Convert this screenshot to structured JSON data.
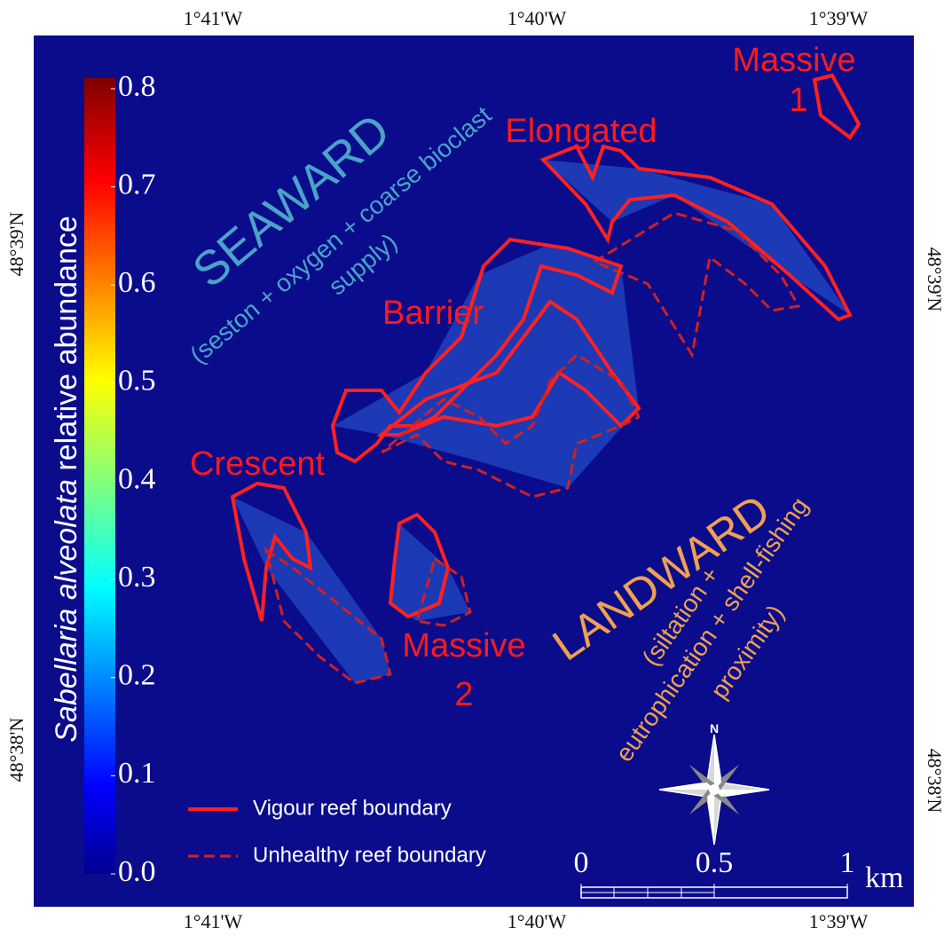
{
  "coordinates": {
    "top": [
      "1°41'W",
      "1°40'W",
      "1°39'W"
    ],
    "bottom": [
      "1°41'W",
      "1°40'W",
      "1°39'W"
    ],
    "left": [
      "48°39'N",
      "48°38'N"
    ],
    "right": [
      "48°39'N",
      "48°38'N"
    ]
  },
  "colorbar": {
    "title_italic": "Sabellaria alveolata",
    "title_rest": "relative abundance",
    "lim": [
      {
        "value": 0,
        "label": "0.0"
      },
      0.8
    ],
    "ticks": [
      {
        "value": 0,
        "label": "0.0"
      },
      0.1,
      0.2,
      0.3,
      0.4,
      0.5,
      0.6,
      0.7,
      0.8
    ]
  },
  "zones": {
    "seaward": {
      "title": "SEAWARD",
      "lines": [
        "(seston + oxygen + coarse bioclast",
        "supply)"
      ]
    },
    "landward": {
      "title": "LANDWARD",
      "lines": [
        "(siltation +",
        "eutrophication + shell-fishing",
        "proximity)"
      ]
    }
  },
  "reefs": {
    "massive1": [
      "Massive",
      "1"
    ],
    "elongated": "Elongated",
    "barrier": "Barrier",
    "crescent": "Crescent",
    "massive2": [
      "Massive",
      "2"
    ]
  },
  "legend": [
    "Vigour reef boundary",
    "Unhealthy reef boundary"
  ],
  "compass": "N",
  "scale": {
    "lim": [
      0,
      1
    ],
    "ticks": [
      0,
      0.5,
      1
    ],
    "unit": "km"
  }
}
